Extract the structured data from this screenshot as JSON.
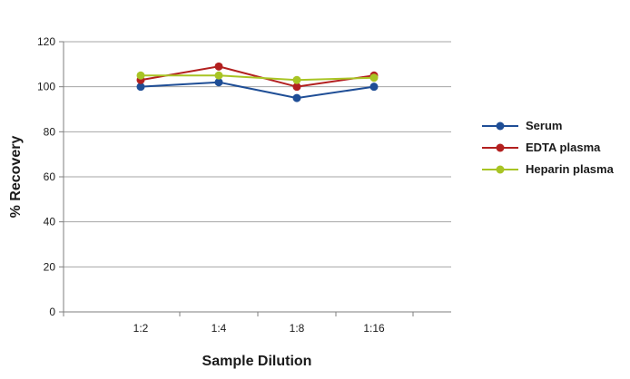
{
  "chart_data": {
    "type": "line",
    "title": "",
    "xlabel": "Sample Dilution",
    "ylabel": "% Recovery",
    "categories": [
      "1:2",
      "1:4",
      "1:8",
      "1:16"
    ],
    "ylim": [
      0,
      120
    ],
    "yticks": [
      0,
      20,
      40,
      60,
      80,
      100,
      120
    ],
    "grid": true,
    "legend_position": "right",
    "series": [
      {
        "name": "Serum",
        "color": "#1f4e96",
        "values": [
          100,
          102,
          95,
          100
        ]
      },
      {
        "name": "EDTA plasma",
        "color": "#b3201f",
        "values": [
          103,
          109,
          100,
          105
        ]
      },
      {
        "name": "Heparin plasma",
        "color": "#a8c424",
        "values": [
          105,
          105,
          103,
          104
        ]
      }
    ]
  }
}
